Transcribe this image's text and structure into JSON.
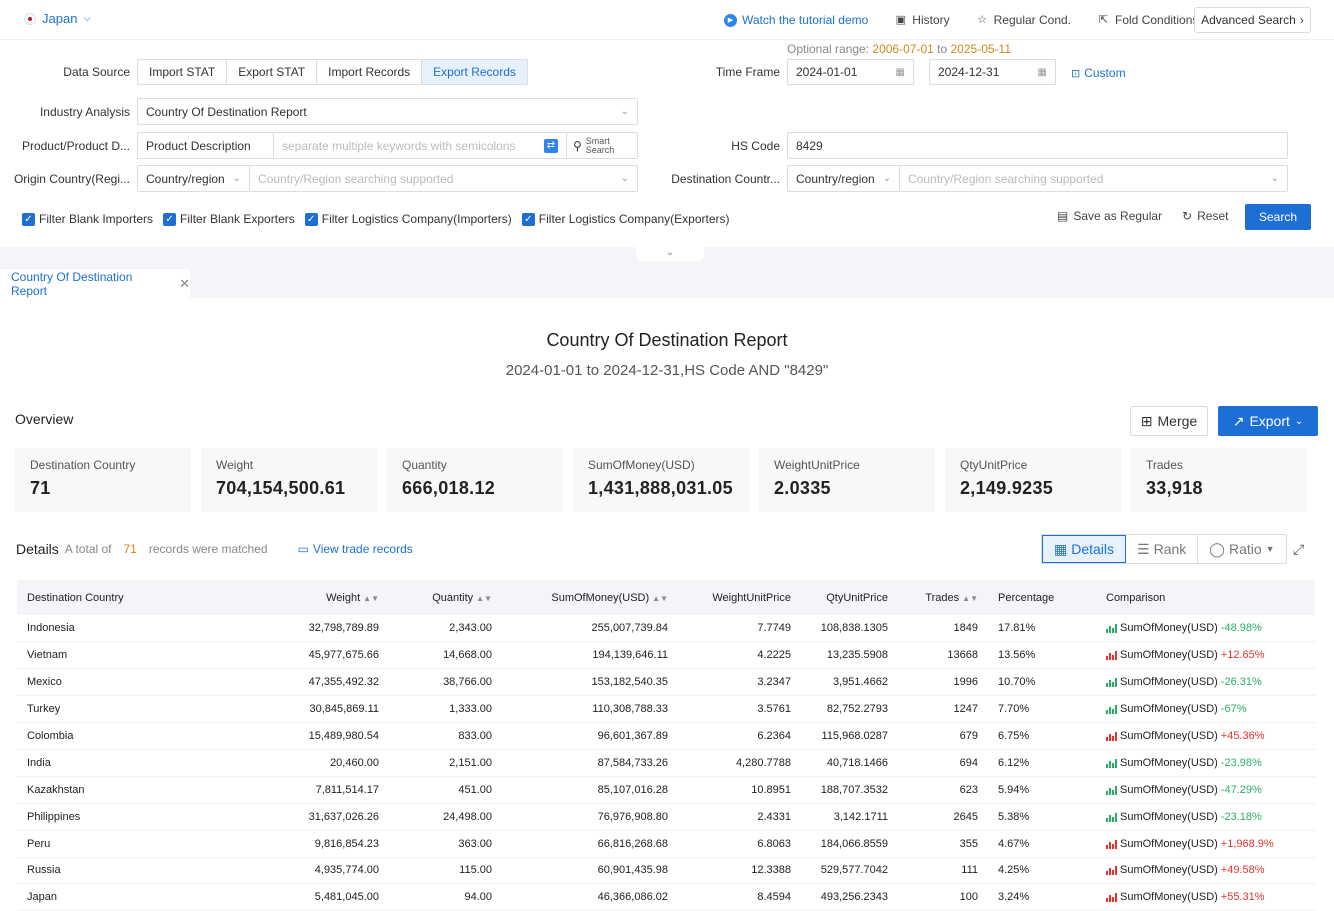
{
  "header": {
    "country": "Japan",
    "links": [
      {
        "label": "Watch the tutorial demo",
        "icon": "play-icon"
      },
      {
        "label": "History",
        "icon": "history-icon"
      },
      {
        "label": "Regular Cond.",
        "icon": "star-icon"
      },
      {
        "label": "Fold Conditions",
        "icon": "fold-icon"
      }
    ],
    "advanced_search": "Advanced Search"
  },
  "filters": {
    "data_source_label": "Data Source",
    "data_source_tabs": [
      "Import STAT",
      "Export STAT",
      "Import Records",
      "Export Records"
    ],
    "data_source_active": "Export Records",
    "optional_range_label": "Optional range:",
    "optional_range_start": "2006-07-01",
    "optional_range_to": "to",
    "optional_range_end": "2025-05-11",
    "time_frame_label": "Time Frame",
    "time_start": "2024-01-01",
    "time_end": "2024-12-31",
    "custom_label": "Custom",
    "industry_label": "Industry Analysis",
    "industry_value": "Country Of Destination Report",
    "product_label": "Product/Product D...",
    "product_type": "Product Description",
    "product_placeholder": "separate multiple keywords with semicolons",
    "smart_search_1": "Smart",
    "smart_search_2": "Search",
    "hs_label": "HS Code",
    "hs_value": "8429",
    "origin_label": "Origin Country(Regi...",
    "origin_type": "Country/region",
    "origin_placeholder": "Country/Region searching supported",
    "dest_label": "Destination Countr...",
    "dest_type": "Country/region",
    "dest_placeholder": "Country/Region searching supported",
    "checkboxes": [
      "Filter Blank Importers",
      "Filter Blank Exporters",
      "Filter Logistics Company(Importers)",
      "Filter Logistics Company(Exporters)"
    ],
    "save_regular": "Save as Regular",
    "reset": "Reset",
    "search": "Search"
  },
  "report_tab": "Country Of Destination Report",
  "report": {
    "title": "Country Of Destination Report",
    "subtitle": "2024-01-01 to 2024-12-31,HS Code AND \"8429\""
  },
  "overview": {
    "heading": "Overview",
    "merge": "Merge",
    "export": "Export",
    "cards": [
      {
        "title": "Destination Country",
        "value": "71"
      },
      {
        "title": "Weight",
        "value": "704,154,500.61"
      },
      {
        "title": "Quantity",
        "value": "666,018.12"
      },
      {
        "title": "SumOfMoney(USD)",
        "value": "1,431,888,031.05"
      },
      {
        "title": "WeightUnitPrice",
        "value": "2.0335"
      },
      {
        "title": "QtyUnitPrice",
        "value": "2,149.9235"
      },
      {
        "title": "Trades",
        "value": "33,918"
      }
    ]
  },
  "details": {
    "heading": "Details",
    "total_prefix": "A total of",
    "total_count": "71",
    "total_suffix": "records were matched",
    "view_trade": "View trade records",
    "views": [
      "Details",
      "Rank",
      "Ratio"
    ],
    "columns": [
      "Destination Country",
      "Weight",
      "Quantity",
      "SumOfMoney(USD)",
      "WeightUnitPrice",
      "QtyUnitPrice",
      "Trades",
      "Percentage",
      "Comparison"
    ],
    "comparison_metric": "SumOfMoney(USD)",
    "rows": [
      {
        "country": "Indonesia",
        "weight": "32,798,789.89",
        "quantity": "2,343.00",
        "money": "255,007,739.84",
        "wup": "7.7749",
        "qup": "108,838.1305",
        "trades": "1849",
        "pct": "17.81%",
        "cmp": "-48.98%",
        "dir": "down"
      },
      {
        "country": "Vietnam",
        "weight": "45,977,675.66",
        "quantity": "14,668.00",
        "money": "194,139,646.11",
        "wup": "4.2225",
        "qup": "13,235.5908",
        "trades": "13668",
        "pct": "13.56%",
        "cmp": "+12.65%",
        "dir": "up"
      },
      {
        "country": "Mexico",
        "weight": "47,355,492.32",
        "quantity": "38,766.00",
        "money": "153,182,540.35",
        "wup": "3.2347",
        "qup": "3,951.4662",
        "trades": "1996",
        "pct": "10.70%",
        "cmp": "-26.31%",
        "dir": "down"
      },
      {
        "country": "Turkey",
        "weight": "30,845,869.11",
        "quantity": "1,333.00",
        "money": "110,308,788.33",
        "wup": "3.5761",
        "qup": "82,752.2793",
        "trades": "1247",
        "pct": "7.70%",
        "cmp": "-67%",
        "dir": "down"
      },
      {
        "country": "Colombia",
        "weight": "15,489,980.54",
        "quantity": "833.00",
        "money": "96,601,367.89",
        "wup": "6.2364",
        "qup": "115,968.0287",
        "trades": "679",
        "pct": "6.75%",
        "cmp": "+45.36%",
        "dir": "up"
      },
      {
        "country": "India",
        "weight": "20,460.00",
        "quantity": "2,151.00",
        "money": "87,584,733.26",
        "wup": "4,280.7788",
        "qup": "40,718.1466",
        "trades": "694",
        "pct": "6.12%",
        "cmp": "-23.98%",
        "dir": "down"
      },
      {
        "country": "Kazakhstan",
        "weight": "7,811,514.17",
        "quantity": "451.00",
        "money": "85,107,016.28",
        "wup": "10.8951",
        "qup": "188,707.3532",
        "trades": "623",
        "pct": "5.94%",
        "cmp": "-47.29%",
        "dir": "down"
      },
      {
        "country": "Philippines",
        "weight": "31,637,026.26",
        "quantity": "24,498.00",
        "money": "76,976,908.80",
        "wup": "2.4331",
        "qup": "3,142.1711",
        "trades": "2645",
        "pct": "5.38%",
        "cmp": "-23.18%",
        "dir": "down"
      },
      {
        "country": "Peru",
        "weight": "9,816,854.23",
        "quantity": "363.00",
        "money": "66,816,268.68",
        "wup": "6.8063",
        "qup": "184,066.8559",
        "trades": "355",
        "pct": "4.67%",
        "cmp": "+1,968.9%",
        "dir": "up"
      },
      {
        "country": "Russia",
        "weight": "4,935,774.00",
        "quantity": "115.00",
        "money": "60,901,435.98",
        "wup": "12.3388",
        "qup": "529,577.7042",
        "trades": "111",
        "pct": "4.25%",
        "cmp": "+49.58%",
        "dir": "up"
      },
      {
        "country": "Japan",
        "weight": "5,481,045.00",
        "quantity": "94.00",
        "money": "46,366,086.02",
        "wup": "8.4594",
        "qup": "493,256.2343",
        "trades": "100",
        "pct": "3.24%",
        "cmp": "+55.31%",
        "dir": "up"
      }
    ]
  }
}
